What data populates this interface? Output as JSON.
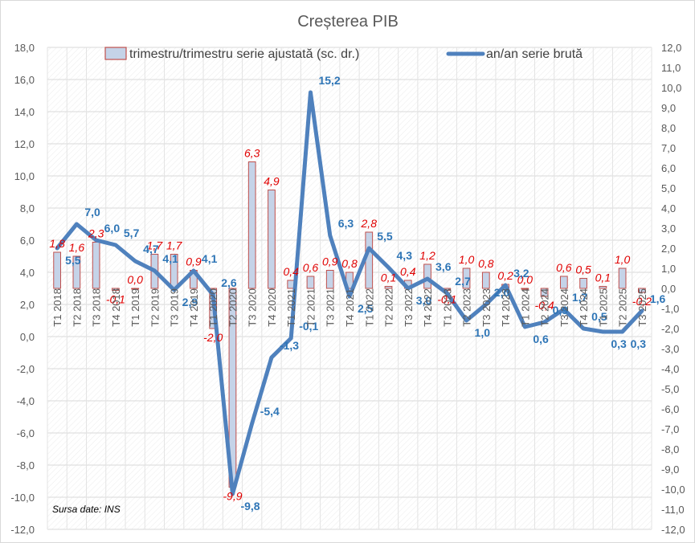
{
  "chart_data": {
    "type": "bar+line",
    "title": "Creșterea PIB",
    "source_note": "Sursa date: INS",
    "categories": [
      "T1 2018",
      "T2 2018",
      "T3 2018",
      "T4 2018",
      "T1 2019",
      "T2 2019",
      "T3 2019",
      "T4 2019",
      "T1 2020",
      "T2 2020",
      "T3 2020",
      "T4 2020",
      "T1 2021",
      "T2 2021",
      "T3 2021",
      "T4 2021",
      "T1 2022",
      "T2 2022",
      "T3 2022",
      "T4 2022",
      "T1 2023",
      "T2 2023",
      "T3 2023",
      "T4 2023",
      "T1 2024",
      "T2 2024",
      "T3 2024",
      "T4 2024",
      "T1 2025",
      "T2 2025",
      "T3 2025"
    ],
    "series": [
      {
        "name": "trimestru/trimestru serie ajustată (sc. dr.)",
        "type": "bar",
        "axis": "right",
        "color": "#c0504d",
        "fill": "#c5d3e8",
        "values": [
          1.8,
          1.6,
          2.3,
          -0.1,
          0.0,
          1.7,
          1.7,
          0.9,
          -2.0,
          -9.9,
          6.3,
          4.9,
          0.4,
          0.6,
          0.9,
          0.8,
          2.8,
          0.1,
          0.4,
          1.2,
          -0.1,
          1.0,
          0.8,
          0.2,
          0.0,
          -0.4,
          0.6,
          0.5,
          0.1,
          1.0,
          -0.2
        ],
        "labels": [
          "1,8",
          "1,6",
          "2,3",
          "-0,1",
          "0,0",
          "1,7",
          "1,7",
          "0,9",
          "-2,0",
          "-9,9",
          "6,3",
          "4,9",
          "0,4",
          "0,6",
          "0,9",
          "0,8",
          "2,8",
          "0,1",
          "0,4",
          "1,2",
          "-0,1",
          "1,0",
          "0,8",
          "0,2",
          "0,0",
          "-0,4",
          "0,6",
          "0,5",
          "0,1",
          "1,0",
          "-0,2"
        ]
      },
      {
        "name": "an/an serie brută",
        "type": "line",
        "axis": "left",
        "color": "#4f81bd",
        "values": [
          5.5,
          7.0,
          6.0,
          5.7,
          4.7,
          4.1,
          2.9,
          4.1,
          2.6,
          -9.8,
          -5.4,
          -1.3,
          -0.1,
          15.2,
          6.3,
          2.5,
          5.5,
          4.3,
          3.0,
          3.6,
          2.7,
          1.0,
          2.0,
          3.2,
          0.6,
          0.9,
          1.7,
          0.5,
          0.3,
          0.3,
          1.6
        ],
        "labels": [
          "5,5",
          "7,0",
          "6,0",
          "5,7",
          "4,7",
          "4,1",
          "2,9",
          "4,1",
          "2,6",
          "-9,8",
          "-5,4",
          "-1,3",
          "-0,1",
          "15,2",
          "6,3",
          "2,5",
          "5,5",
          "4,3",
          "3,0",
          "3,6",
          "2,7",
          "1,0",
          "2,0",
          "3,2",
          "0,6",
          "0,9",
          "1,7",
          "0,5",
          "0,3",
          "0,3",
          "1,6"
        ]
      }
    ],
    "y_left": {
      "ylim": [
        -12,
        18
      ],
      "ticks": [
        "-12,0",
        "-10,0",
        "-8,0",
        "-6,0",
        "-4,0",
        "-2,0",
        "0,0",
        "2,0",
        "4,0",
        "6,0",
        "8,0",
        "10,0",
        "12,0",
        "14,0",
        "16,0",
        "18,0"
      ]
    },
    "y_right": {
      "ylim": [
        -12,
        12
      ],
      "ticks": [
        "-12,0",
        "-11,0",
        "-10,0",
        "-9,0",
        "-8,0",
        "-7,0",
        "-6,0",
        "-5,0",
        "-4,0",
        "-3,0",
        "-2,0",
        "-1,0",
        "0,0",
        "1,0",
        "2,0",
        "3,0",
        "4,0",
        "5,0",
        "6,0",
        "7,0",
        "8,0",
        "9,0",
        "10,0",
        "11,0",
        "12,0"
      ]
    },
    "grid": true,
    "legend_position": "top"
  }
}
